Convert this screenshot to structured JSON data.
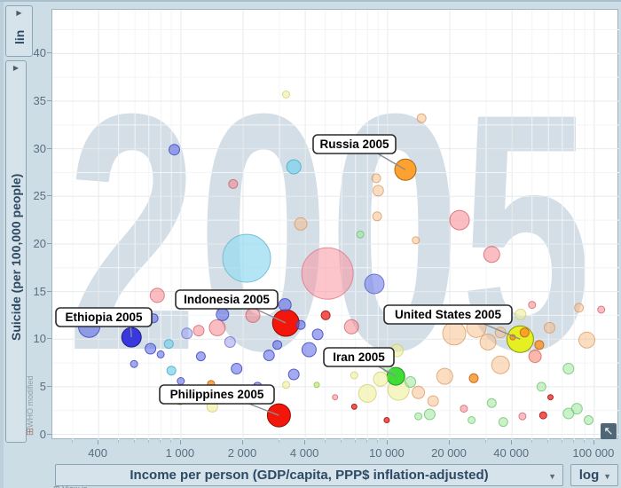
{
  "y_axis_panel": {
    "scale": "lin",
    "title": "Suicide (per 100,000 people)",
    "footnote": "WHO modified"
  },
  "x_axis_panel": {
    "title": "Income per person (GDP/capita, PPP$ inflation-adjusted)",
    "scale": "log"
  },
  "icons": {
    "expander": "▶",
    "dropdown_caret": "▼",
    "reset_zoom": "↖",
    "grid": "⊞"
  },
  "bottom_note": "View is",
  "colors": {
    "chrome_bg": "#cddde6",
    "plot_bg": "#ffffff",
    "watermark": "#d3dee7",
    "grid_major": "#e7eaec",
    "grid_minor": "#f3f4f6",
    "axis_text": "#5a6e80",
    "panel_text": "#2c4a63"
  },
  "chart_data": {
    "type": "scatter",
    "title": "2005",
    "watermark": "2005",
    "xlabel": "Income per person (GDP/capita, PPP$ inflation-adjusted)",
    "ylabel": "Suicide (per 100,000 people)",
    "x_scale": "log",
    "y_scale": "lin",
    "grid": true,
    "xlim": [
      239,
      132000
    ],
    "ylim": [
      -0.6,
      44.6
    ],
    "x_ticks": [
      400,
      1000,
      2000,
      4000,
      10000,
      20000,
      40000,
      100000
    ],
    "x_tick_labels": [
      "400",
      "1 000",
      "2 000",
      "4 000",
      "10 000",
      "20 000",
      "40 000",
      "100 000"
    ],
    "y_ticks": [
      0,
      5,
      10,
      15,
      20,
      25,
      30,
      35,
      40
    ],
    "y_minor_step": 2.5,
    "palette": {
      "blue": [
        "rgba(90,100,230,0.55)",
        "rgba(60,70,190,0.85)"
      ],
      "lavender": [
        "rgba(150,150,240,0.5)",
        "rgba(110,110,200,0.8)"
      ],
      "periwinkle": [
        "rgba(125,135,235,0.65)",
        "rgba(90,100,200,0.85)"
      ],
      "cyan": [
        "rgba(120,210,235,0.7)",
        "rgba(80,170,200,0.85)"
      ],
      "cyanBig": [
        "rgba(155,220,240,0.75)",
        "rgba(110,185,210,0.9)"
      ],
      "pink": [
        "rgba(245,110,120,0.45)",
        "rgba(210,80,90,0.7)"
      ],
      "pinkBig": [
        "rgba(248,150,160,0.55)",
        "rgba(225,110,125,0.75)"
      ],
      "red": [
        "rgba(240,45,40,0.8)",
        "rgba(160,25,20,0.9)"
      ],
      "beige": [
        "rgba(246,180,120,0.45)",
        "rgba(215,145,85,0.7)"
      ],
      "orange": [
        "rgba(250,150,45,0.85)",
        "rgba(190,105,25,0.9)"
      ],
      "salmon": [
        "rgba(246,125,105,0.55)",
        "rgba(210,90,75,0.75)"
      ],
      "paleYellow": [
        "rgba(238,238,150,0.55)",
        "rgba(205,205,105,0.75)"
      ],
      "paleGreen": [
        "rgba(150,228,150,0.5)",
        "rgba(100,195,100,0.75)"
      ],
      "lime": [
        "rgba(185,232,105,0.65)",
        "rgba(140,195,70,0.85)"
      ],
      "orangeSolid": [
        "#ffa12e",
        "#a06a1c"
      ],
      "blueSolid": [
        "#3838dd",
        "#20207f"
      ],
      "redSolid": [
        "#f2170a",
        "#8c0f06"
      ],
      "greenSolid": [
        "#41dd37",
        "#1f8f1a"
      ],
      "yellowSolid": [
        "#e6ef22",
        "#8c9418"
      ]
    },
    "labeled_points": [
      {
        "label": "Russia 2005",
        "income": 12200,
        "suicide": 27.8,
        "r": 12,
        "color": "orangeSolid",
        "box": [
          352,
          149
        ]
      },
      {
        "label": "Ethiopia 2005",
        "income": 577,
        "suicide": 10.2,
        "r": 11,
        "color": "blueSolid",
        "box": [
          62,
          344
        ]
      },
      {
        "label": "Indonesia 2005",
        "income": 3220,
        "suicide": 11.7,
        "r": 15,
        "color": "redSolid",
        "box": [
          197,
          324
        ]
      },
      {
        "label": "United States 2005",
        "income": 43800,
        "suicide": 10.0,
        "r": 15,
        "color": "yellowSolid",
        "box": [
          432,
          341
        ]
      },
      {
        "label": "Iran 2005",
        "income": 10960,
        "suicide": 6.1,
        "r": 10,
        "color": "greenSolid",
        "box": [
          364,
          389
        ]
      },
      {
        "label": "Philippines 2005",
        "income": 2980,
        "suicide": 2.0,
        "r": 13,
        "color": "redSolid",
        "box": [
          179,
          431
        ]
      }
    ],
    "background_points": [
      [
        930,
        29.9,
        6,
        "blue"
      ],
      [
        1790,
        26.3,
        5,
        "pink"
      ],
      [
        3520,
        28.1,
        8,
        "cyan"
      ],
      [
        3230,
        35.7,
        4,
        "paleYellow"
      ],
      [
        14600,
        33.2,
        5,
        "beige"
      ],
      [
        8810,
        26.9,
        5,
        "beige"
      ],
      [
        9010,
        25.6,
        6,
        "beige"
      ],
      [
        22300,
        22.5,
        11,
        "pink"
      ],
      [
        31900,
        18.9,
        9,
        "pink"
      ],
      [
        8630,
        15.8,
        11,
        "periwinkle"
      ],
      [
        8900,
        22.9,
        5,
        "beige"
      ],
      [
        13700,
        20.4,
        4,
        "beige"
      ],
      [
        7380,
        21.0,
        4,
        "paleGreen"
      ],
      [
        2080,
        18.5,
        27,
        "cyanBig"
      ],
      [
        5120,
        16.9,
        29,
        "pinkBig"
      ],
      [
        3800,
        22.1,
        7,
        "beige"
      ],
      [
        360,
        11.3,
        12,
        "blue"
      ],
      [
        488,
        12.2,
        6,
        "blue"
      ],
      [
        738,
        12.2,
        5,
        "blue"
      ],
      [
        769,
        14.6,
        8,
        "pink"
      ],
      [
        1590,
        12.6,
        7,
        "blue"
      ],
      [
        3190,
        13.6,
        7,
        "blue"
      ],
      [
        1220,
        10.9,
        6,
        "pink"
      ],
      [
        1500,
        11.2,
        9,
        "pink"
      ],
      [
        2230,
        12.5,
        8,
        "pink"
      ],
      [
        2670,
        8.3,
        6,
        "blue"
      ],
      [
        4170,
        8.9,
        8,
        "blue"
      ],
      [
        1860,
        6.9,
        6,
        "blue"
      ],
      [
        1250,
        8.2,
        5,
        "blue"
      ],
      [
        1000,
        5.6,
        4,
        "blue"
      ],
      [
        1440,
        4.3,
        5,
        "blue"
      ],
      [
        2350,
        5.0,
        5,
        "blue"
      ],
      [
        3520,
        6.3,
        6,
        "blue"
      ],
      [
        594,
        7.4,
        4,
        "blue"
      ],
      [
        875,
        9.5,
        5,
        "cyan"
      ],
      [
        1070,
        10.6,
        6,
        "lavender"
      ],
      [
        1730,
        9.7,
        6,
        "lavender"
      ],
      [
        2930,
        9.4,
        5,
        "blue"
      ],
      [
        4590,
        10.5,
        6,
        "blue"
      ],
      [
        5020,
        12.5,
        5,
        "red"
      ],
      [
        3800,
        11.5,
        5,
        "blue"
      ],
      [
        6690,
        11.3,
        8,
        "pink"
      ],
      [
        713,
        9.0,
        6,
        "blue"
      ],
      [
        799,
        8.4,
        4,
        "blue"
      ],
      [
        900,
        6.7,
        5,
        "cyan"
      ],
      [
        9250,
        5.8,
        8,
        "paleYellow"
      ],
      [
        11300,
        4.7,
        12,
        "paleYellow"
      ],
      [
        7990,
        4.3,
        10,
        "paleYellow"
      ],
      [
        12900,
        5.5,
        6,
        "paleGreen"
      ],
      [
        10000,
        7.0,
        5,
        "paleGreen"
      ],
      [
        11100,
        8.8,
        7,
        "paleYellow"
      ],
      [
        8900,
        8.2,
        4,
        "lime"
      ],
      [
        6900,
        6.2,
        4,
        "paleYellow"
      ],
      [
        21000,
        10.6,
        13,
        "beige"
      ],
      [
        26900,
        11.2,
        11,
        "beige"
      ],
      [
        30600,
        9.7,
        9,
        "beige"
      ],
      [
        29400,
        12.5,
        8,
        "salmon"
      ],
      [
        35200,
        10.7,
        6,
        "beige"
      ],
      [
        51700,
        8.2,
        7,
        "salmon"
      ],
      [
        35200,
        7.3,
        10,
        "beige"
      ],
      [
        60800,
        11.2,
        6,
        "beige"
      ],
      [
        84300,
        13.3,
        5,
        "beige"
      ],
      [
        92000,
        9.9,
        9,
        "beige"
      ],
      [
        108000,
        13.1,
        4,
        "pink"
      ],
      [
        75000,
        6.9,
        6,
        "paleGreen"
      ],
      [
        55500,
        5.0,
        5,
        "paleGreen"
      ],
      [
        82400,
        2.7,
        6,
        "paleGreen"
      ],
      [
        31900,
        3.3,
        5,
        "paleGreen"
      ],
      [
        18900,
        6.1,
        9,
        "beige"
      ],
      [
        16600,
        3.5,
        6,
        "beige"
      ],
      [
        23400,
        2.7,
        4,
        "pink"
      ],
      [
        26100,
        5.9,
        5,
        "orange"
      ],
      [
        44000,
        12.6,
        6,
        "paleYellow"
      ],
      [
        50000,
        13.6,
        4,
        "pink"
      ],
      [
        14100,
        1.9,
        4,
        "paleGreen"
      ],
      [
        16000,
        2.1,
        6,
        "paleGreen"
      ],
      [
        25500,
        1.5,
        4,
        "paleGreen"
      ],
      [
        36300,
        1.3,
        5,
        "paleGreen"
      ],
      [
        56600,
        2.0,
        4,
        "red"
      ],
      [
        75000,
        2.2,
        6,
        "paleGreen"
      ],
      [
        93900,
        1.5,
        5,
        "paleGreen"
      ],
      [
        44900,
        1.9,
        4,
        "pink"
      ],
      [
        61400,
        3.9,
        3,
        "red"
      ],
      [
        9900,
        1.5,
        3,
        "red"
      ],
      [
        6900,
        2.9,
        3,
        "red"
      ],
      [
        5570,
        3.9,
        3,
        "pink"
      ],
      [
        4540,
        5.2,
        3,
        "lime"
      ],
      [
        3230,
        5.2,
        4,
        "paleYellow"
      ],
      [
        1420,
        2.9,
        6,
        "paleYellow"
      ],
      [
        990,
        3.6,
        5,
        "orange"
      ],
      [
        1400,
        5.3,
        4,
        "orange"
      ],
      [
        46000,
        10.7,
        5,
        "orange"
      ],
      [
        54200,
        9.4,
        5,
        "orange"
      ],
      [
        40300,
        10.2,
        3,
        "orange"
      ],
      [
        14100,
        4.4,
        7,
        "beige"
      ]
    ]
  }
}
